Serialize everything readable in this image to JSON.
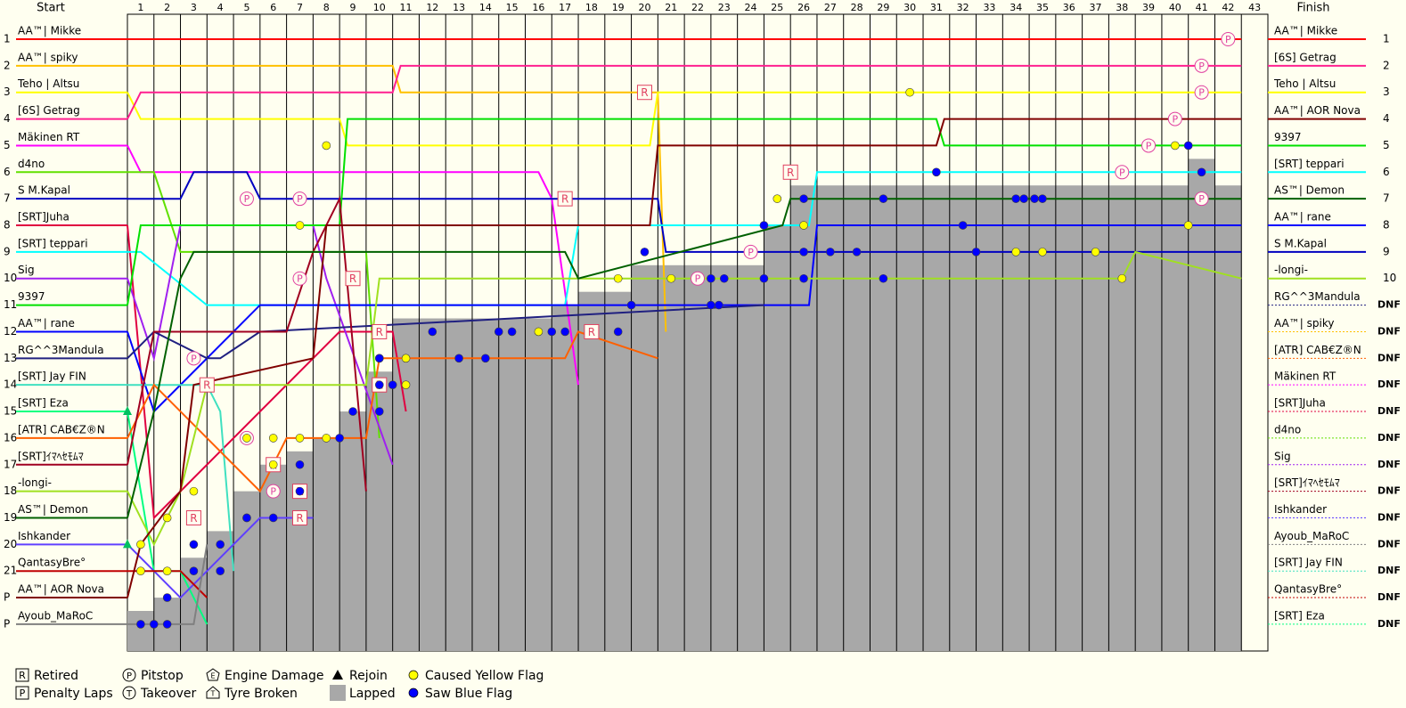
{
  "chart_data": {
    "type": "lap-chart",
    "start_title": "Start",
    "finish_title": "Finish",
    "laps": [
      1,
      2,
      3,
      4,
      5,
      6,
      7,
      8,
      9,
      10,
      11,
      12,
      13,
      14,
      15,
      16,
      17,
      18,
      19,
      20,
      21,
      22,
      23,
      24,
      25,
      26,
      27,
      28,
      29,
      30,
      31,
      32,
      33,
      34,
      35,
      36,
      37,
      38,
      39,
      40,
      41,
      42,
      43
    ],
    "start_positions": [
      1,
      2,
      3,
      4,
      5,
      6,
      7,
      8,
      9,
      10,
      11,
      12,
      13,
      14,
      15,
      16,
      17,
      18,
      19,
      20,
      21,
      "P",
      "P"
    ],
    "finish_names": [
      "AA™| Mikke",
      "[6S] Getrag",
      "Teho | Altsu",
      "AA™| AOR Nova",
      "9397",
      "[SRT] teppari",
      "AS™| Demon",
      "AA™| rane",
      "S M.Kapal",
      "-longi-",
      "RG^^3Mandula",
      "AA™| spiky",
      "[ATR] CAB€Z®N",
      "Mäkinen RT",
      "[SRT]Juha",
      "d4no",
      "Sig",
      "[SRT]ｲﾏﾍｾﾓﾑﾏ",
      "Ishkander",
      "Ayoub_MaRoC",
      "[SRT] Jay FIN",
      "QantasyBre°",
      "[SRT] Eza"
    ],
    "finish_results": [
      1,
      2,
      3,
      4,
      5,
      6,
      7,
      8,
      9,
      10,
      "DNF",
      "DNF",
      "DNF",
      "DNF",
      "DNF",
      "DNF",
      "DNF",
      "DNF",
      "DNF",
      "DNF",
      "DNF",
      "DNF",
      "DNF"
    ],
    "series": [
      {
        "name": "AA™| Mikke",
        "color": "#ff0000",
        "x": [
          0,
          42
        ],
        "values": [
          1,
          1
        ]
      },
      {
        "name": "AA™| spiky",
        "color": "#ffc000",
        "x": [
          0,
          10,
          10.3,
          20,
          20.3
        ],
        "values": [
          2,
          2,
          3,
          3,
          12
        ]
      },
      {
        "name": "Teho | Altsu",
        "color": "#ffff00",
        "x": [
          0,
          0.5,
          8,
          8.3,
          19.7,
          20,
          42
        ],
        "values": [
          3,
          4,
          4,
          5,
          5,
          3,
          3
        ]
      },
      {
        "name": "[6S] Getrag",
        "color": "#ff2090",
        "x": [
          0,
          0.5,
          10,
          10.3,
          42
        ],
        "values": [
          4,
          3,
          3,
          2,
          2
        ]
      },
      {
        "name": "Mäkinen RT",
        "color": "#ff00ff",
        "x": [
          0,
          0.5,
          15.5,
          16,
          17
        ],
        "values": [
          5,
          6,
          6,
          7,
          14
        ]
      },
      {
        "name": "d4no",
        "color": "#60e000",
        "x": [
          0,
          1,
          2,
          9,
          9.5
        ],
        "values": [
          6,
          6,
          9,
          9,
          16
        ]
      },
      {
        "name": "S M.Kapal",
        "color": "#0000c0",
        "x": [
          0,
          2,
          2.5,
          4.5,
          5,
          20,
          20.3,
          42
        ],
        "values": [
          7,
          7,
          6,
          6,
          7,
          7,
          9,
          9
        ]
      },
      {
        "name": "[SRT]Juha",
        "color": "#e00040",
        "x": [
          0,
          1,
          8,
          8.5,
          10,
          10.5
        ],
        "values": [
          8,
          19,
          12,
          12,
          12,
          15
        ]
      },
      {
        "name": "[SRT] teppari",
        "color": "#00ffff",
        "x": [
          0,
          0.5,
          3,
          3.5,
          16.5,
          17,
          25.7,
          26,
          42
        ],
        "values": [
          9,
          9,
          11,
          11,
          11,
          8,
          8,
          6,
          6
        ]
      },
      {
        "name": "Sig",
        "color": "#a020f0",
        "x": [
          0,
          1,
          2,
          7,
          7.5,
          10
        ],
        "values": [
          10,
          13,
          8,
          8,
          10,
          17
        ]
      },
      {
        "name": "9397",
        "color": "#00e000",
        "x": [
          0,
          0.5,
          8,
          8.3,
          30.5,
          30.8,
          42
        ],
        "values": [
          11,
          8,
          8,
          4,
          4,
          5,
          5
        ]
      },
      {
        "name": "AA™| rane",
        "color": "#0000ff",
        "x": [
          0,
          1,
          5,
          5.5,
          25.7,
          26,
          42
        ],
        "values": [
          12,
          15,
          11,
          11,
          11,
          8,
          8
        ]
      },
      {
        "name": "RG^^3Mandula",
        "color": "#202080",
        "x": [
          0,
          1,
          3,
          3.5,
          5,
          24
        ],
        "values": [
          13,
          12,
          13,
          13,
          12,
          11
        ]
      },
      {
        "name": "[SRT] Jay FIN",
        "color": "#40e0c0",
        "x": [
          0,
          1,
          3,
          3.5,
          4
        ],
        "values": [
          14,
          14,
          14,
          15,
          21
        ]
      },
      {
        "name": "[SRT] Eza",
        "color": "#00ff80",
        "x": [
          0,
          1,
          2,
          3
        ],
        "values": [
          15,
          21,
          21,
          23
        ]
      },
      {
        "name": "[ATR] CAB€Z®N",
        "color": "#ff6000",
        "x": [
          0,
          1,
          5,
          6,
          9,
          9.5,
          16.5,
          17,
          20
        ],
        "values": [
          16,
          14,
          18,
          16,
          16,
          13,
          13,
          12,
          13
        ]
      },
      {
        "name": "[SRT]ｲﾏﾍｾﾓﾑﾏ",
        "color": "#a00020",
        "x": [
          0,
          1,
          6,
          7,
          8,
          9
        ],
        "values": [
          17,
          12,
          12,
          9,
          7,
          18
        ]
      },
      {
        "name": "-longi-",
        "color": "#a0e020",
        "x": [
          0,
          1,
          2,
          3,
          9,
          9.5,
          37.5,
          38,
          42
        ],
        "values": [
          18,
          20,
          18,
          14,
          14,
          10,
          10,
          9,
          10
        ]
      },
      {
        "name": "AS™| Demon",
        "color": "#006000",
        "x": [
          0,
          1,
          2,
          2.5,
          9,
          9.5,
          16.5,
          17,
          24.7,
          25,
          42
        ],
        "values": [
          19,
          15,
          10,
          9,
          9,
          9,
          9,
          10,
          8,
          7,
          7
        ]
      },
      {
        "name": "Ishkander",
        "color": "#6040ff",
        "x": [
          0,
          1,
          2,
          5,
          6,
          7
        ],
        "values": [
          20,
          21,
          22,
          19,
          19,
          19
        ]
      },
      {
        "name": "QantasyBre°",
        "color": "#c00000",
        "x": [
          0,
          1,
          2,
          3
        ],
        "values": [
          21,
          21,
          21,
          22
        ]
      },
      {
        "name": "AA™| AOR Nova",
        "color": "#800000",
        "x": [
          0,
          0.5,
          2,
          2.5,
          7,
          7.5,
          19.7,
          20,
          30.5,
          30.8,
          42
        ],
        "values": [
          22,
          20,
          18,
          14,
          13,
          8,
          8,
          5,
          5,
          4,
          4
        ]
      },
      {
        "name": "Ayoub_MaRoC",
        "color": "#808080",
        "x": [
          0,
          2.5,
          3
        ],
        "values": [
          23,
          23,
          20
        ]
      }
    ],
    "lapped": {
      "x": [
        1,
        2,
        3,
        4,
        5,
        6,
        7,
        8,
        9,
        10,
        11,
        12,
        13,
        14,
        15,
        16,
        17,
        18,
        19,
        20,
        21,
        22,
        23,
        24,
        25,
        26,
        27,
        28,
        29,
        30,
        31,
        32,
        33,
        34,
        35,
        36,
        37,
        38,
        39,
        40,
        41,
        42
      ],
      "values": [
        22.5,
        22,
        20.5,
        19.5,
        18,
        17,
        16.5,
        16,
        15,
        13.5,
        11.5,
        11.5,
        11.5,
        11.5,
        11.5,
        11.5,
        11,
        10.5,
        10.5,
        9.5,
        9.5,
        9.5,
        9.5,
        9.5,
        8,
        6.5,
        6.5,
        6.5,
        6.5,
        6.5,
        6.5,
        6.5,
        6.5,
        6.5,
        6.5,
        6.5,
        6.5,
        6.5,
        6.5,
        6.5,
        5.5,
        6.5
      ]
    },
    "legend": [
      {
        "label": "Retired",
        "symbol": "R",
        "x": [
          3,
          7,
          6,
          10,
          17,
          18,
          20,
          25.5,
          9,
          7,
          3.5,
          10
        ],
        "values": [
          19,
          18,
          17,
          12,
          7,
          12,
          3,
          6,
          10,
          19,
          14,
          14
        ]
      },
      {
        "label": "Pitstop",
        "symbol": "P",
        "x": [
          42,
          41,
          41,
          40,
          39,
          38,
          41,
          24,
          22,
          7,
          7,
          5,
          3,
          5,
          6
        ],
        "values": [
          1,
          2,
          3,
          4,
          5,
          6,
          7,
          9,
          10,
          10,
          7,
          7,
          13,
          16,
          18
        ]
      },
      {
        "label": "Engine Damage",
        "symbol": "E"
      },
      {
        "label": "Rejoin",
        "x": [
          0.5,
          0.5
        ],
        "values": [
          15,
          20
        ]
      },
      {
        "label": "Caused Yellow Flag",
        "color": "#ffff00",
        "x": [
          30,
          25,
          26,
          40.5,
          7,
          8,
          19,
          21,
          40,
          34,
          35,
          37,
          38,
          11,
          11,
          10,
          6,
          7,
          8,
          5,
          3,
          2,
          1,
          2,
          5,
          16,
          6,
          1
        ],
        "values": [
          3,
          7,
          8,
          8,
          8,
          5,
          10,
          10,
          5,
          9,
          9,
          9,
          10,
          14,
          13,
          13,
          16,
          16,
          16,
          16,
          18,
          19,
          21,
          21,
          19,
          12,
          17,
          20
        ]
      },
      {
        "label": "Penalty Laps",
        "symbol": "P"
      },
      {
        "label": "Takeover",
        "symbol": "T"
      },
      {
        "label": "Tyre Broken",
        "symbol": "T"
      },
      {
        "label": "Lapped"
      },
      {
        "label": "Saw Blue Flag",
        "color": "#0000ff",
        "x": [
          24.5,
          26,
          29,
          34,
          34.3,
          34.7,
          35,
          32,
          31,
          41,
          40.5,
          26,
          27,
          28,
          32.5,
          26,
          29,
          22.5,
          23,
          24.5,
          20,
          19.5,
          22.5,
          22.8,
          19,
          12,
          14.5,
          15,
          17,
          16.5,
          13,
          14,
          10,
          10,
          10.5,
          9,
          10,
          8.5,
          7,
          7,
          5,
          6,
          4,
          3,
          3,
          4,
          1,
          1.5,
          2,
          2
        ],
        "values": [
          8,
          7,
          7,
          7,
          7,
          7,
          7,
          8,
          6,
          6,
          5,
          9,
          9,
          9,
          9,
          10,
          10,
          10,
          10,
          10,
          9,
          11,
          11,
          11,
          12,
          12,
          12,
          12,
          12,
          12,
          13,
          13,
          13,
          14,
          14,
          15,
          15,
          16,
          17,
          18,
          19,
          19,
          20,
          20,
          21,
          21,
          23,
          23,
          23,
          22
        ]
      }
    ]
  }
}
